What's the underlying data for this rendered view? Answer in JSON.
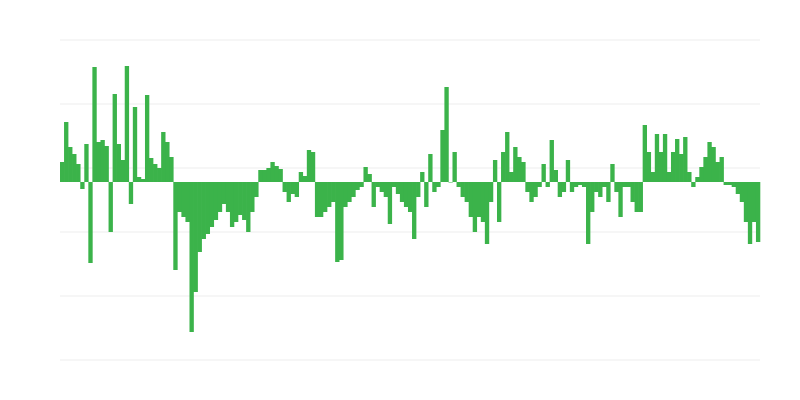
{
  "chart_data": {
    "type": "bar",
    "title": "",
    "xlabel": "",
    "ylabel": "",
    "ylim": [
      -178,
      142
    ],
    "gridlines": [
      142,
      78,
      14,
      -50,
      -114,
      -178
    ],
    "grid": true,
    "bar_color": "#3bb34a",
    "grid_color": "#eeeeee",
    "values": [
      20,
      60,
      35,
      28,
      18,
      -7,
      38,
      -81,
      115,
      40,
      42,
      36,
      -50,
      88,
      38,
      22,
      116,
      -22,
      75,
      5,
      3,
      87,
      24,
      18,
      14,
      50,
      40,
      25,
      -88,
      -30,
      -35,
      -40,
      -150,
      -110,
      -70,
      -57,
      -52,
      -45,
      -38,
      -30,
      -22,
      -30,
      -45,
      -40,
      -33,
      -38,
      -50,
      -30,
      -15,
      12,
      12,
      14,
      20,
      16,
      13,
      -10,
      -20,
      -12,
      -15,
      10,
      6,
      32,
      30,
      -35,
      -35,
      -30,
      -25,
      -20,
      -80,
      -78,
      -25,
      -20,
      -15,
      -8,
      -5,
      15,
      8,
      -25,
      -5,
      -10,
      -15,
      -42,
      -5,
      -12,
      -20,
      -25,
      -30,
      -57,
      -15,
      10,
      -25,
      28,
      -10,
      -5,
      52,
      95,
      0,
      30,
      -5,
      -15,
      -20,
      -35,
      -50,
      -35,
      -40,
      -62,
      -20,
      22,
      -40,
      30,
      50,
      10,
      35,
      25,
      20,
      -10,
      -20,
      -15,
      -5,
      18,
      -5,
      42,
      12,
      -15,
      -10,
      22,
      -10,
      -5,
      -3,
      -5,
      -62,
      -30,
      -10,
      -15,
      -5,
      -20,
      18,
      -10,
      -35,
      -5,
      -5,
      -20,
      -30,
      -30,
      57,
      30,
      10,
      48,
      30,
      48,
      10,
      30,
      43,
      28,
      45,
      10,
      -5,
      5,
      15,
      25,
      40,
      35,
      20,
      25,
      -3,
      -3,
      -5,
      -12,
      -20,
      -40,
      -62,
      -40,
      -60
    ]
  }
}
